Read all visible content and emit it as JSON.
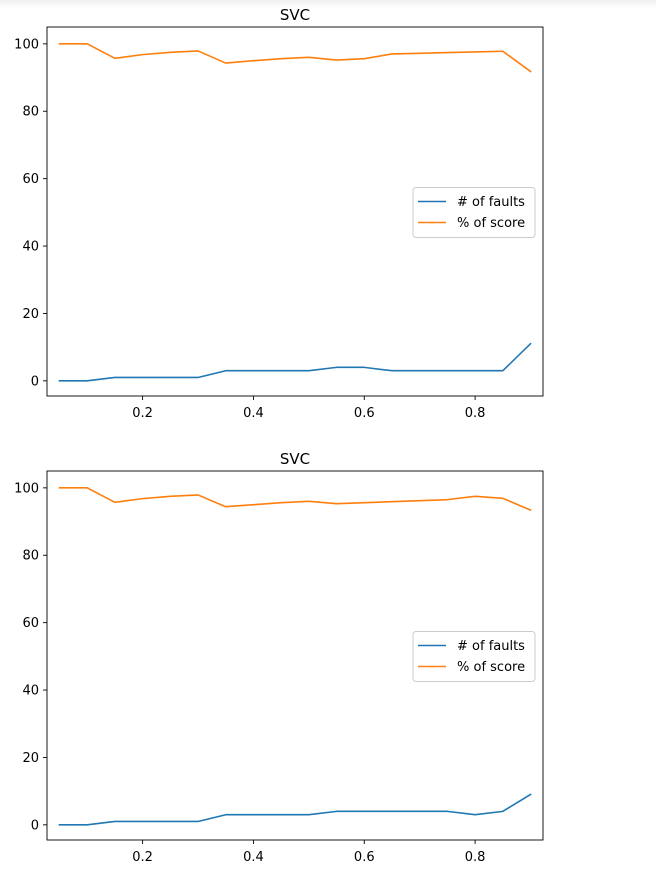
{
  "chart_data": [
    {
      "type": "line",
      "title": "SVC",
      "xlabel": "",
      "ylabel": "",
      "xlim": [
        0.0275,
        0.9225
      ],
      "ylim": [
        -4.5,
        105
      ],
      "x_ticks": [
        0.2,
        0.4,
        0.6,
        0.8
      ],
      "x_tick_labels": [
        "0.2",
        "0.4",
        "0.6",
        "0.8"
      ],
      "y_ticks": [
        0,
        20,
        40,
        60,
        80,
        100
      ],
      "y_tick_labels": [
        "0",
        "20",
        "40",
        "60",
        "80",
        "100"
      ],
      "grid": false,
      "legend_position": "center-right",
      "x": [
        0.05,
        0.1,
        0.15,
        0.2,
        0.25,
        0.3,
        0.35,
        0.4,
        0.45,
        0.5,
        0.55,
        0.6,
        0.65,
        0.7,
        0.75,
        0.8,
        0.85,
        0.9
      ],
      "series": [
        {
          "name": "# of faults",
          "color": "#1f77b4",
          "values": [
            0,
            0,
            1,
            1,
            1,
            1,
            3,
            3,
            3,
            3,
            4,
            4,
            3,
            3,
            3,
            3,
            3,
            11
          ]
        },
        {
          "name": "% of score",
          "color": "#ff7f0e",
          "values": [
            100,
            100,
            95.7,
            96.8,
            97.5,
            97.9,
            94.3,
            95.0,
            95.6,
            96.0,
            95.2,
            95.6,
            97.0,
            97.2,
            97.4,
            97.6,
            97.8,
            91.8
          ]
        }
      ]
    },
    {
      "type": "line",
      "title": "SVC",
      "xlabel": "",
      "ylabel": "",
      "xlim": [
        0.0275,
        0.9225
      ],
      "ylim": [
        -4.5,
        105
      ],
      "x_ticks": [
        0.2,
        0.4,
        0.6,
        0.8
      ],
      "x_tick_labels": [
        "0.2",
        "0.4",
        "0.6",
        "0.8"
      ],
      "y_ticks": [
        0,
        20,
        40,
        60,
        80,
        100
      ],
      "y_tick_labels": [
        "0",
        "20",
        "40",
        "60",
        "80",
        "100"
      ],
      "grid": false,
      "legend_position": "center-right",
      "x": [
        0.05,
        0.1,
        0.15,
        0.2,
        0.25,
        0.3,
        0.35,
        0.4,
        0.45,
        0.5,
        0.55,
        0.6,
        0.65,
        0.7,
        0.75,
        0.8,
        0.85,
        0.9
      ],
      "series": [
        {
          "name": "# of faults",
          "color": "#1f77b4",
          "values": [
            0,
            0,
            1,
            1,
            1,
            1,
            3,
            3,
            3,
            3,
            4,
            4,
            4,
            4,
            4,
            3,
            4,
            9
          ]
        },
        {
          "name": "% of score",
          "color": "#ff7f0e",
          "values": [
            100,
            100,
            95.7,
            96.8,
            97.5,
            97.9,
            94.4,
            95.0,
            95.6,
            96.0,
            95.3,
            95.6,
            95.9,
            96.2,
            96.5,
            97.5,
            96.9,
            93.4
          ]
        }
      ]
    }
  ]
}
